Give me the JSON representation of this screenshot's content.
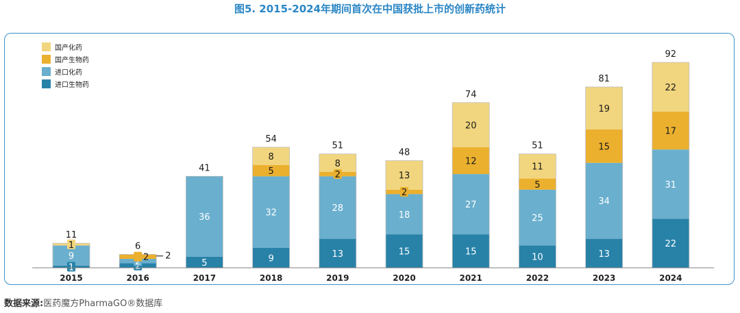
{
  "title": "图5. 2015-2024年期间首次在中国获批上市的创新药统计",
  "source": {
    "label": "数据来源:",
    "text": "医药魔方PharmaGO®数据库"
  },
  "chart_data": {
    "type": "bar",
    "stacked": true,
    "title": "图5. 2015-2024年期间首次在中国获批上市的创新药统计",
    "xlabel": "",
    "ylabel": "",
    "ylim": [
      0,
      100
    ],
    "grid": false,
    "legend_position": "top-left",
    "categories": [
      "2015",
      "2016",
      "2017",
      "2018",
      "2019",
      "2020",
      "2021",
      "2022",
      "2023",
      "2024"
    ],
    "totals": [
      11,
      6,
      41,
      54,
      51,
      48,
      74,
      51,
      81,
      92
    ],
    "series": [
      {
        "name": "进口生物药",
        "color": "#2882a8",
        "text_color": "#ffffff",
        "values": [
          1,
          2,
          5,
          9,
          13,
          15,
          15,
          10,
          13,
          22
        ]
      },
      {
        "name": "进口化药",
        "color": "#6aafce",
        "text_color": "#ffffff",
        "values": [
          9,
          2,
          36,
          32,
          28,
          18,
          27,
          25,
          34,
          31
        ]
      },
      {
        "name": "国产生物药",
        "color": "#ebb02e",
        "text_color": "#1a1a1a",
        "values": [
          0,
          2,
          0,
          5,
          2,
          2,
          12,
          5,
          15,
          17
        ]
      },
      {
        "name": "国产化药",
        "color": "#f1d67f",
        "text_color": "#1a1a1a",
        "values": [
          1,
          0,
          0,
          8,
          8,
          13,
          20,
          11,
          19,
          22
        ]
      }
    ],
    "legend_order": [
      "国产化药",
      "国产生物药",
      "进口化药",
      "进口生物药"
    ]
  }
}
